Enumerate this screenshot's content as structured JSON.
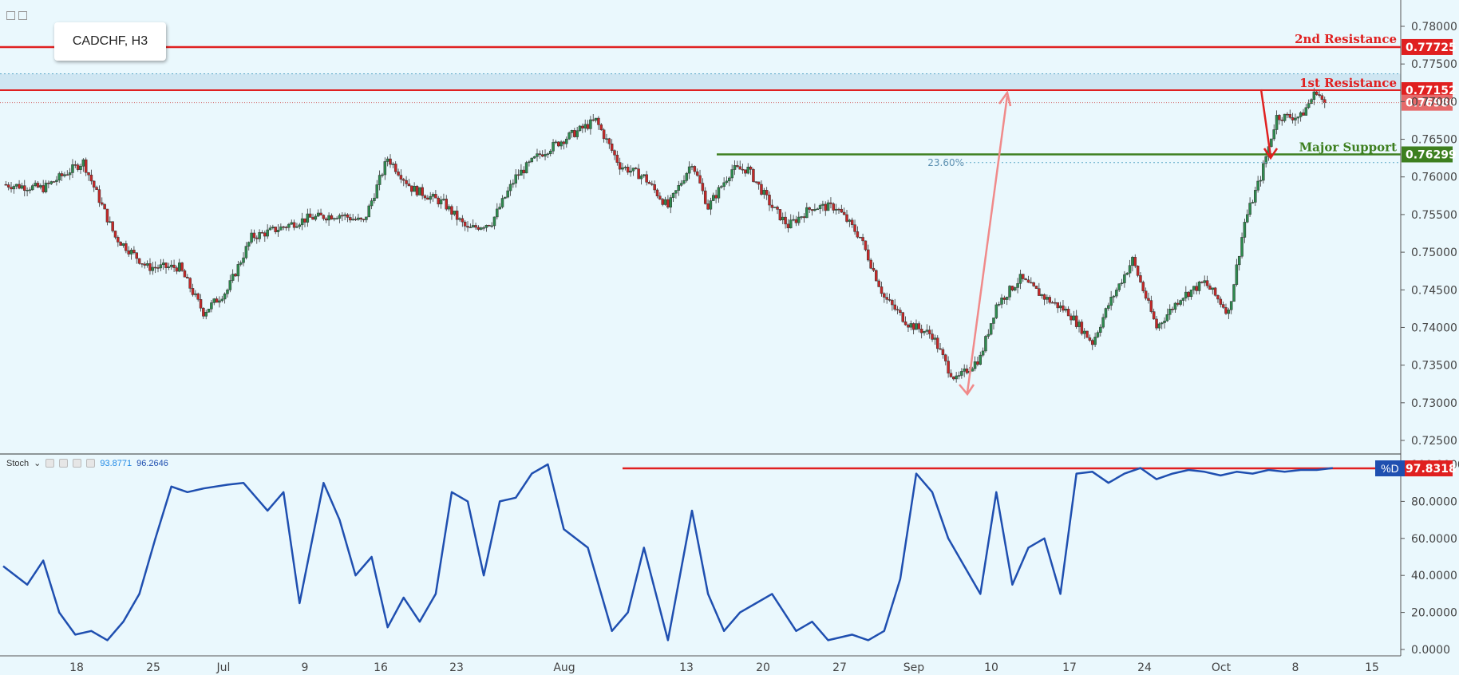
{
  "title": "CADCHF, H3",
  "stoch": {
    "name": "Stoch",
    "k_value": "93.8771",
    "d_value": "96.2646",
    "d_label": "%D"
  },
  "colors": {
    "background": "#eaf8fd",
    "up": "#2e8b4f",
    "down": "#c62828",
    "resistance": "#e02020",
    "support": "#3d7f1f",
    "stoch_line": "#1f4fb0",
    "arrow_up": "#f08a8a",
    "arrow_down": "#e02020"
  },
  "chart_data": [
    {
      "type": "candlestick",
      "title": "CADCHF, H3",
      "ylim": [
        0.722,
        0.7815
      ],
      "y_ticks": [
        "0.78000",
        "0.77500",
        "0.77000",
        "0.76500",
        "0.76000",
        "0.75500",
        "0.75000",
        "0.74500",
        "0.74000",
        "0.73500",
        "0.73000",
        "0.72500"
      ],
      "x_ticks": [
        "18",
        "25",
        "Jul",
        "9",
        "16",
        "23",
        "Aug",
        "13",
        "20",
        "27",
        "Sep",
        "10",
        "17",
        "24",
        "Oct",
        "8",
        "15"
      ],
      "levels": [
        {
          "name": "2nd Resistance",
          "value": "0.77725",
          "color": "#e02020"
        },
        {
          "name": "1st Resistance",
          "value": "0.77152",
          "color": "#e02020"
        },
        {
          "name": "",
          "value": "0.76986",
          "color": "#e66a6a"
        },
        {
          "name": "Major Support",
          "value": "0.76299",
          "color": "#3d7f1f"
        }
      ],
      "fib_label": "23.60%",
      "price_path": [
        [
          0,
          0.759
        ],
        [
          5,
          0.7585
        ],
        [
          10,
          0.762
        ],
        [
          14,
          0.752
        ],
        [
          18,
          0.748
        ],
        [
          22,
          0.748
        ],
        [
          25,
          0.742
        ],
        [
          28,
          0.745
        ],
        [
          31,
          0.752
        ],
        [
          34,
          0.753
        ],
        [
          38,
          0.7545
        ],
        [
          42,
          0.755
        ],
        [
          45,
          0.754
        ],
        [
          48,
          0.7625
        ],
        [
          51,
          0.7585
        ],
        [
          55,
          0.7565
        ],
        [
          58,
          0.753
        ],
        [
          61,
          0.754
        ],
        [
          64,
          0.76
        ],
        [
          67,
          0.763
        ],
        [
          70,
          0.765
        ],
        [
          74,
          0.7675
        ],
        [
          77,
          0.7615
        ],
        [
          80,
          0.76
        ],
        [
          83,
          0.756
        ],
        [
          86,
          0.762
        ],
        [
          88,
          0.756
        ],
        [
          91,
          0.761
        ],
        [
          93,
          0.761
        ],
        [
          96,
          0.756
        ],
        [
          98,
          0.7535
        ],
        [
          101,
          0.756
        ],
        [
          104,
          0.756
        ],
        [
          107,
          0.752
        ],
        [
          110,
          0.744
        ],
        [
          113,
          0.7405
        ],
        [
          116,
          0.739
        ],
        [
          118,
          0.7345
        ],
        [
          119,
          0.733
        ],
        [
          122,
          0.736
        ],
        [
          124,
          0.743
        ],
        [
          127,
          0.7465
        ],
        [
          130,
          0.744
        ],
        [
          133,
          0.742
        ],
        [
          136,
          0.738
        ],
        [
          138,
          0.743
        ],
        [
          141,
          0.749
        ],
        [
          144,
          0.74
        ],
        [
          147,
          0.744
        ],
        [
          150,
          0.746
        ],
        [
          153,
          0.742
        ],
        [
          155,
          0.754
        ],
        [
          157,
          0.76
        ],
        [
          158,
          0.764
        ],
        [
          159,
          0.768
        ],
        [
          162,
          0.768
        ],
        [
          164,
          0.7715
        ],
        [
          165,
          0.7695
        ]
      ],
      "x_range": [
        0,
        172
      ]
    },
    {
      "type": "line",
      "title": "Stoch",
      "ylim": [
        0,
        100
      ],
      "y_ticks": [
        "100.0000",
        "80.0000",
        "60.0000",
        "40.0000",
        "20.0000",
        "0.0000"
      ],
      "current_value": "97.8318",
      "series": [
        {
          "name": "%D",
          "x": [
            0,
            3,
            5,
            7,
            9,
            11,
            13,
            15,
            17,
            19,
            21,
            23,
            25,
            28,
            30,
            33,
            35,
            37,
            40,
            42,
            44,
            46,
            48,
            50,
            52,
            54,
            56,
            58,
            60,
            62,
            64,
            66,
            68,
            70,
            73,
            76,
            78,
            80,
            83,
            86,
            88,
            90,
            92,
            94,
            96,
            99,
            101,
            103,
            106,
            108,
            110,
            112,
            114,
            116,
            118,
            120,
            122,
            124,
            126,
            128,
            130,
            132,
            134,
            136,
            138,
            140,
            142,
            144,
            146,
            148,
            150,
            152,
            154,
            156,
            158,
            160,
            162,
            164,
            166
          ],
          "y": [
            45,
            35,
            48,
            20,
            8,
            10,
            5,
            15,
            30,
            60,
            88,
            85,
            87,
            89,
            90,
            75,
            85,
            25,
            90,
            70,
            40,
            50,
            12,
            28,
            15,
            30,
            85,
            80,
            40,
            80,
            82,
            95,
            100,
            65,
            55,
            10,
            20,
            55,
            5,
            75,
            30,
            10,
            20,
            25,
            30,
            10,
            15,
            5,
            8,
            5,
            10,
            38,
            95,
            85,
            60,
            45,
            30,
            85,
            35,
            55,
            60,
            30,
            95,
            96,
            90,
            95,
            98,
            92,
            95,
            97,
            96,
            94,
            96,
            95,
            97,
            96,
            97,
            97,
            98
          ]
        }
      ],
      "x_range": [
        0,
        172
      ]
    }
  ]
}
